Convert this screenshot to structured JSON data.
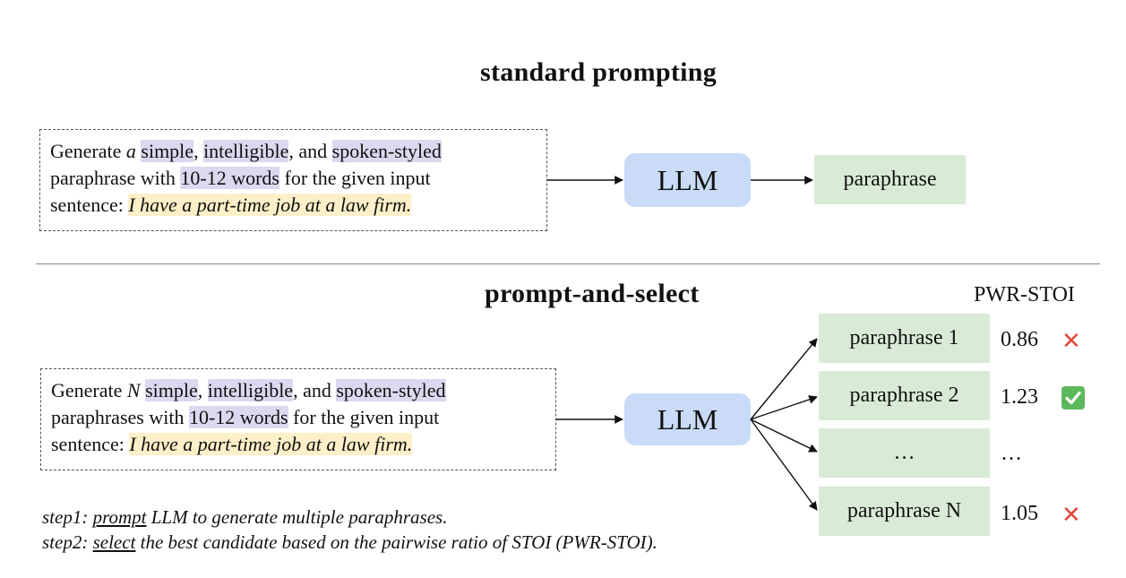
{
  "standard": {
    "title": "standard prompting",
    "prompt": {
      "p1": "Generate ",
      "p2": "a",
      "p3": " ",
      "p4": "simple",
      "p5": ", ",
      "p6": "intelligible",
      "p7": ", and ",
      "p8": "spoken-styled",
      "p9": "paraphrase with ",
      "p10": "10-12 words",
      "p11": " for the given input",
      "p12": "sentence: ",
      "p13": "I have a part-time job at a law firm."
    },
    "llm_label": "LLM",
    "output_label": "paraphrase"
  },
  "select": {
    "title": "prompt-and-select",
    "column_header": "PWR-STOI",
    "prompt": {
      "p1": "Generate ",
      "p2": "N",
      "p3": " ",
      "p4": "simple",
      "p5": ", ",
      "p6": "intelligible",
      "p7": ", and ",
      "p8": "spoken-styled",
      "p9": "paraphrases with ",
      "p10": "10-12 words",
      "p11": " for the given input",
      "p12": "sentence: ",
      "p13": "I have a part-time job at a law firm."
    },
    "llm_label": "LLM",
    "candidates": [
      {
        "label": "paraphrase 1",
        "score": "0.86",
        "mark": "cross"
      },
      {
        "label": "paraphrase 2",
        "score": "1.23",
        "mark": "check"
      },
      {
        "label": "…",
        "score": "…",
        "mark": "none"
      },
      {
        "label": "paraphrase N",
        "score": "1.05",
        "mark": "cross"
      }
    ],
    "steps": {
      "s1_pre": "step1: ",
      "s1_kw": "prompt",
      "s1_post": " LLM to generate multiple paraphrases.",
      "s2_pre": "step2: ",
      "s2_kw": "select",
      "s2_post": " the best candidate based on the pairwise ratio of STOI (PWR-STOI)."
    }
  },
  "colors": {
    "llm": "#c9dbf7",
    "output": "#d9ebd6",
    "highlight_purple": "#dcd8ef",
    "highlight_yellow": "#fdf0c8",
    "cross": "#e0483a",
    "check": "#5cb85c"
  }
}
